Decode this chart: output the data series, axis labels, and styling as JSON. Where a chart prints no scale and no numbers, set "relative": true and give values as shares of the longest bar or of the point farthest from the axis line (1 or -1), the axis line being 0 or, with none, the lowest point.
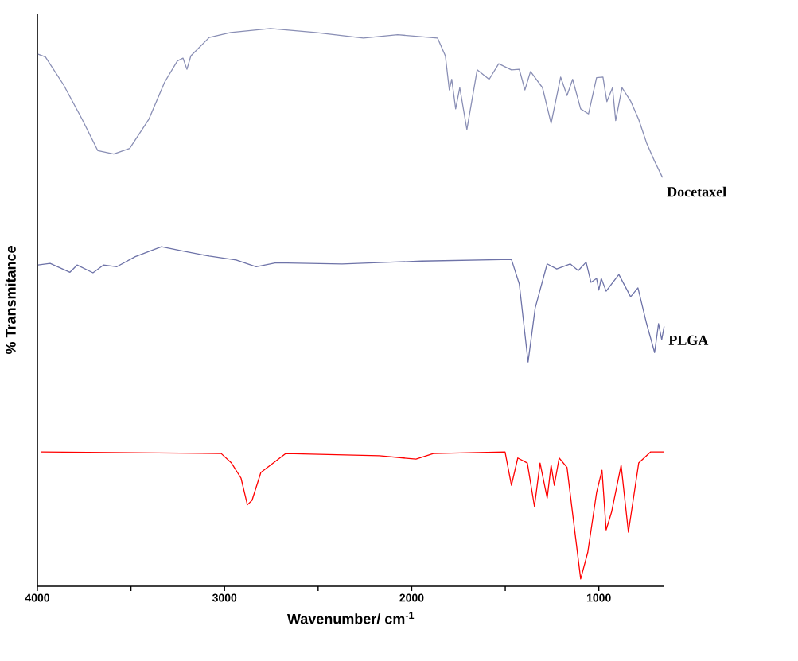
{
  "chart_data": {
    "type": "line",
    "relative": true,
    "xlabel": "Wavenumber/ cm$^{-1}$",
    "ylabel": "% Transmitance",
    "xlim": [
      4000,
      650
    ],
    "xticks": [
      4000,
      {
        "value": 3500,
        "label": null
      },
      3000,
      {
        "value": 2500,
        "label": null
      },
      2000,
      {
        "value": 1500,
        "label": null
      },
      1000
    ],
    "series": [
      {
        "name": "Docetaxel",
        "color": "#8a8fb5",
        "x": [
          3996,
          3957,
          3860,
          3762,
          3677,
          3592,
          3507,
          3405,
          3320,
          3252,
          3222,
          3201,
          3180,
          3082,
          2967,
          2755,
          2513,
          2258,
          2075,
          1862,
          1820,
          1799,
          1786,
          1765,
          1743,
          1705,
          1650,
          1586,
          1535,
          1467,
          1425,
          1395,
          1365,
          1301,
          1255,
          1204,
          1170,
          1140,
          1097,
          1055,
          1012,
          978,
          957,
          927,
          910,
          876,
          830,
          787,
          745,
          702,
          660
        ],
        "values": [
          0.954,
          0.949,
          0.899,
          0.838,
          0.781,
          0.775,
          0.785,
          0.837,
          0.904,
          0.942,
          0.947,
          0.927,
          0.951,
          0.984,
          0.993,
          1,
          0.993,
          0.983,
          0.989,
          0.983,
          0.951,
          0.89,
          0.909,
          0.856,
          0.894,
          0.819,
          0.926,
          0.909,
          0.937,
          0.926,
          0.927,
          0.89,
          0.923,
          0.894,
          0.83,
          0.913,
          0.88,
          0.909,
          0.856,
          0.847,
          0.912,
          0.913,
          0.869,
          0.894,
          0.835,
          0.894,
          0.87,
          0.837,
          0.795,
          0.762,
          0.733
        ]
      },
      {
        "name": "PLGA",
        "color": "#6e73a8",
        "x": [
          3996,
          3932,
          3826,
          3788,
          3703,
          3647,
          3575,
          3477,
          3337,
          3222,
          3082,
          2938,
          2831,
          2725,
          2372,
          1947,
          1467,
          1425,
          1378,
          1340,
          1276,
          1225,
          1153,
          1110,
          1068,
          1042,
          1012,
          1000,
          987,
          961,
          893,
          830,
          791,
          745,
          702,
          681,
          664,
          651
        ],
        "values": [
          0.576,
          0.579,
          0.563,
          0.576,
          0.562,
          0.576,
          0.573,
          0.591,
          0.609,
          0.601,
          0.592,
          0.585,
          0.573,
          0.58,
          0.578,
          0.583,
          0.586,
          0.542,
          0.402,
          0.499,
          0.578,
          0.569,
          0.578,
          0.566,
          0.581,
          0.545,
          0.552,
          0.531,
          0.552,
          0.529,
          0.559,
          0.519,
          0.535,
          0.471,
          0.419,
          0.471,
          0.442,
          0.466
        ]
      },
      {
        "color": "#ff0000",
        "x": [
          3979,
          3018,
          2963,
          2912,
          2878,
          2853,
          2806,
          2674,
          2173,
          1977,
          1884,
          1501,
          1467,
          1433,
          1382,
          1344,
          1314,
          1276,
          1255,
          1238,
          1212,
          1170,
          1144,
          1097,
          1059,
          1012,
          983,
          961,
          932,
          881,
          842,
          787,
          723,
          651
        ],
        "values": [
          0.241,
          0.238,
          0.221,
          0.194,
          0.146,
          0.154,
          0.204,
          0.238,
          0.234,
          0.228,
          0.238,
          0.241,
          0.181,
          0.23,
          0.221,
          0.143,
          0.221,
          0.158,
          0.217,
          0.181,
          0.23,
          0.213,
          0.141,
          0.013,
          0.061,
          0.168,
          0.208,
          0.101,
          0.133,
          0.217,
          0.097,
          0.221,
          0.241,
          0.241
        ]
      }
    ]
  }
}
